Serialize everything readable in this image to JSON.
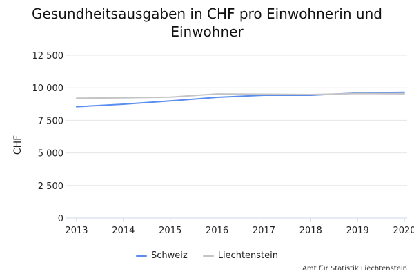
{
  "chart_data": {
    "type": "line",
    "title_lines": [
      "Gesundheitsausgaben in CHF pro Einwohnerin und",
      "Einwohner"
    ],
    "xlabel": "",
    "ylabel": "CHF",
    "x": [
      "2013",
      "2014",
      "2015",
      "2016",
      "2017",
      "2018",
      "2019",
      "2020"
    ],
    "ylim": [
      0,
      12500
    ],
    "yticks": [
      0,
      2500,
      5000,
      7500,
      10000,
      12500
    ],
    "ytick_labels": [
      "0",
      "2 500",
      "5 000",
      "7 500",
      "10 000",
      "12 500"
    ],
    "grid": true,
    "legend_position": "bottom",
    "series": [
      {
        "name": "Schweiz",
        "color": "#5b8def",
        "values": [
          8550,
          8740,
          8990,
          9270,
          9430,
          9430,
          9600,
          9650
        ]
      },
      {
        "name": "Liechtenstein",
        "color": "#c4c4c4",
        "values": [
          9200,
          9230,
          9280,
          9530,
          9510,
          9480,
          9560,
          9540
        ]
      }
    ]
  },
  "source": "Amt für Statistik Liechtenstein"
}
